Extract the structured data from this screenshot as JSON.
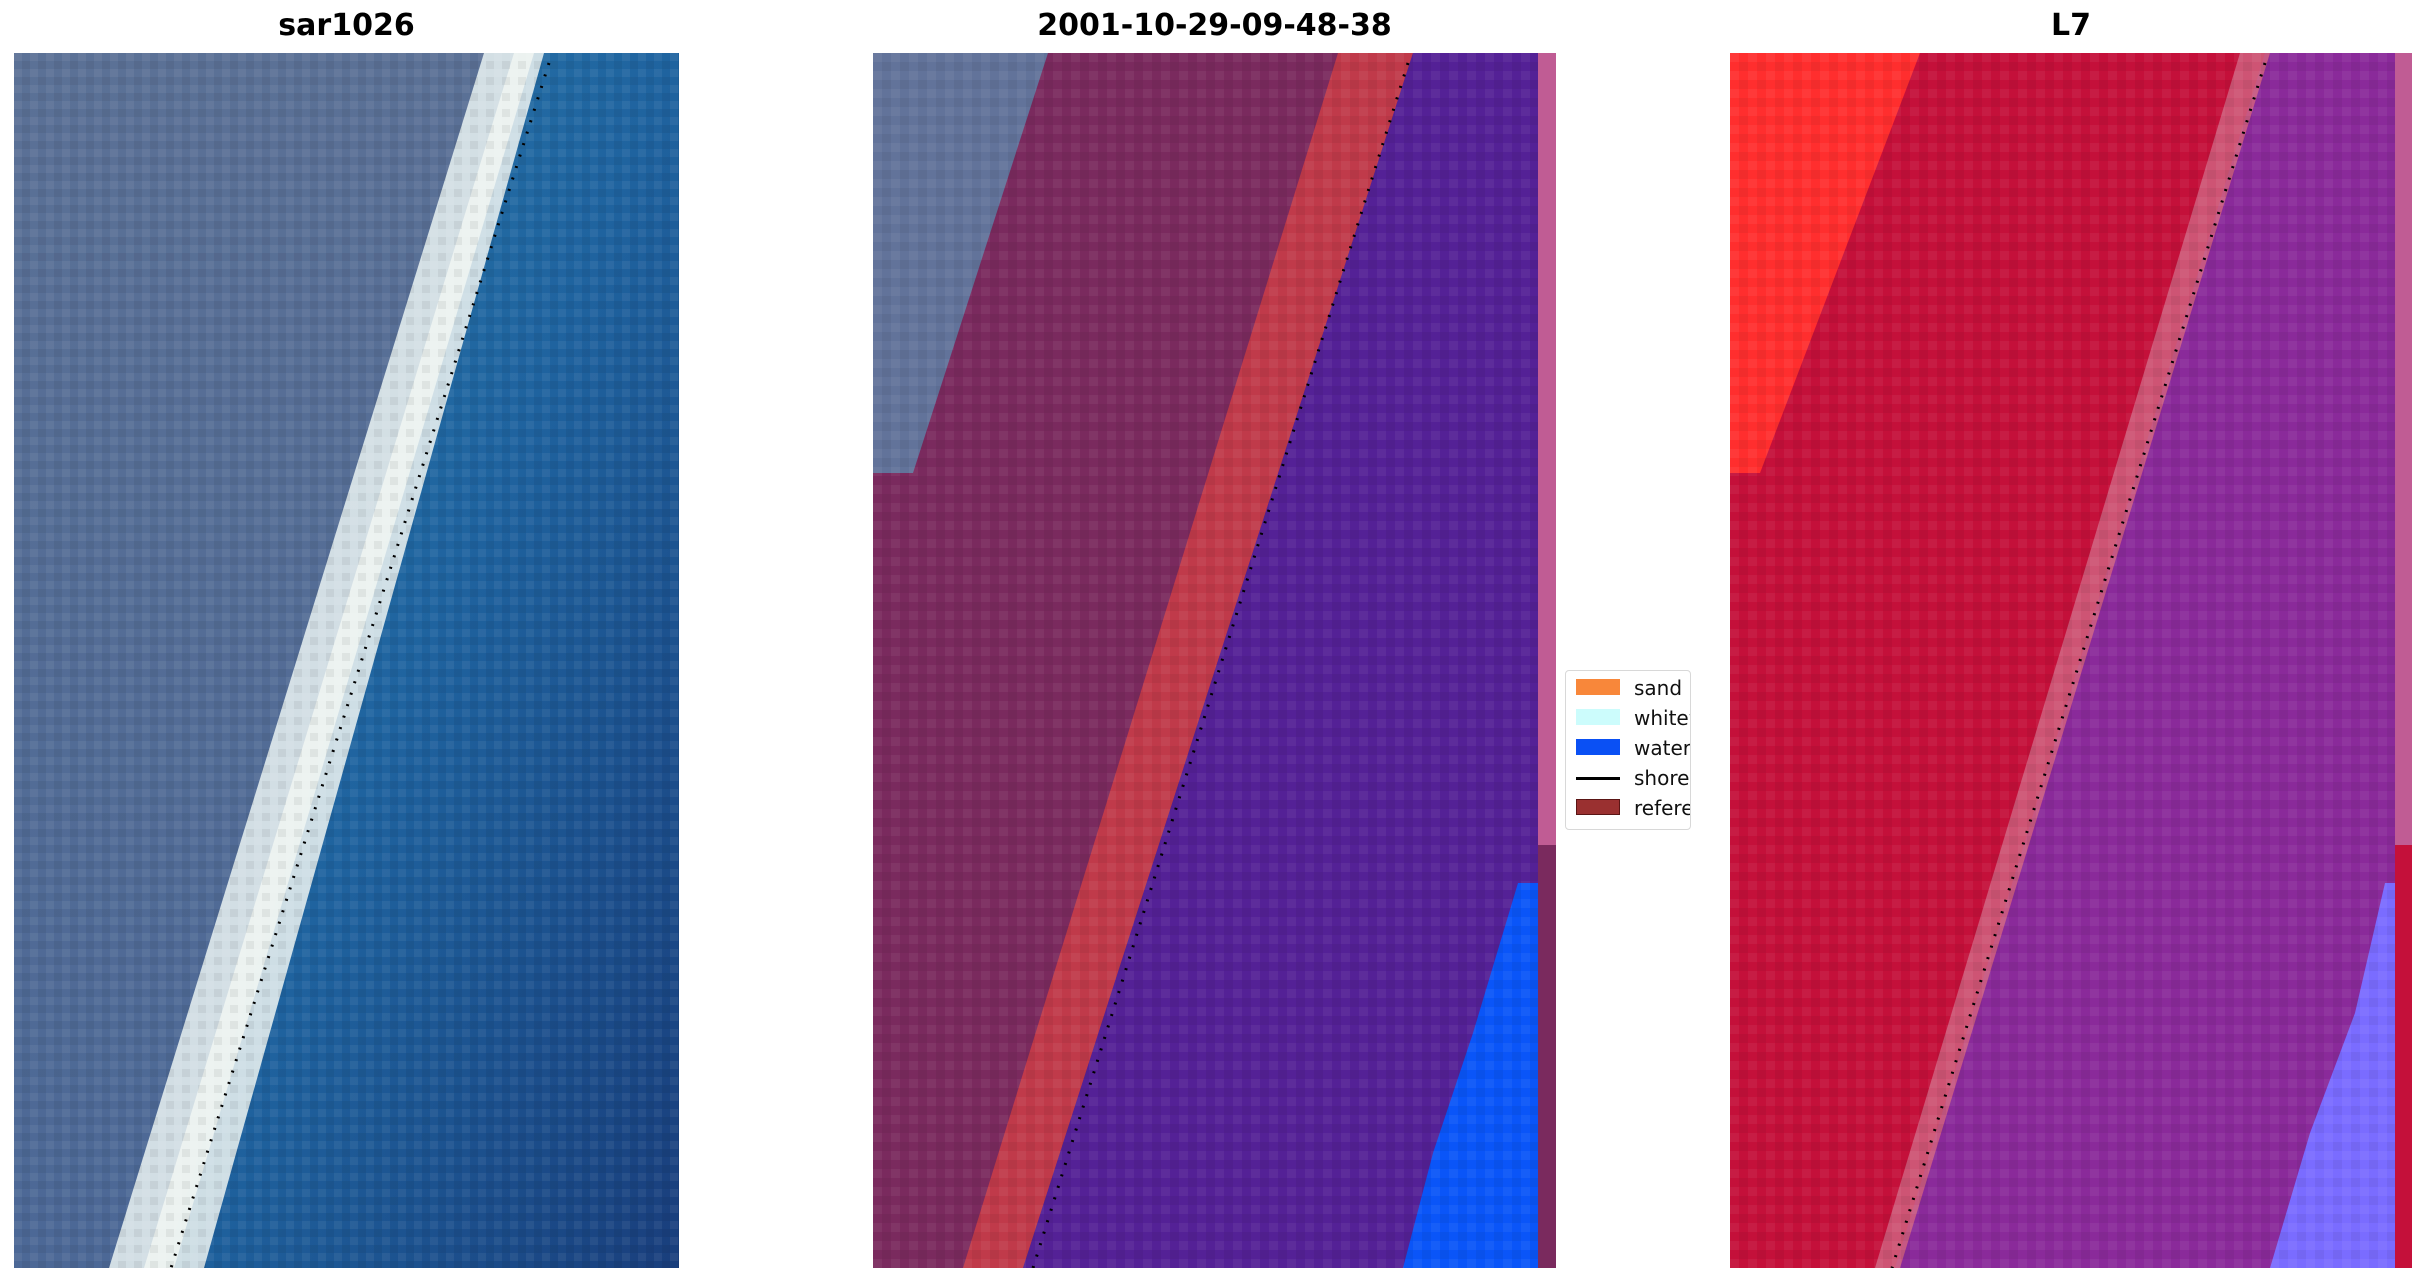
{
  "panels": [
    {
      "title": "sar1026"
    },
    {
      "title": "2001-10-29-09-48-38"
    },
    {
      "title": "L7"
    }
  ],
  "legend": {
    "items": [
      {
        "label": "sand",
        "color": "#f8873a",
        "type": "patch"
      },
      {
        "label": "whitewater",
        "color": "#ccfcfc",
        "type": "patch"
      },
      {
        "label": "water",
        "color": "#0a50f4",
        "type": "patch"
      },
      {
        "label": "shoreline",
        "color": "#000000",
        "type": "line"
      },
      {
        "label": "reference",
        "color": "#9a3030",
        "type": "patch"
      }
    ]
  },
  "colors": {
    "land_rgb": "#4f6d98",
    "white_surf": "#e8f0ee",
    "sea_rgb": "#1f5f9c",
    "classified_land": "#7a2a5e",
    "classified_sand_overlay": "#c03a4a",
    "classified_water": "#542196",
    "classified_water_bright": "#0a55f8",
    "classified_strip": "#c05c94",
    "l7_red": "#c4103a",
    "l7_bright_red": "#ff2a2a",
    "l7_purple": "#8a2a9a",
    "l7_blue": "#7a6cff"
  }
}
